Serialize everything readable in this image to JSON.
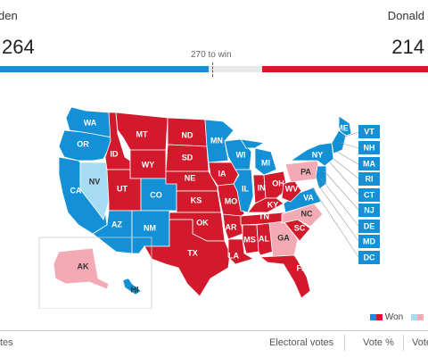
{
  "header": {
    "left_candidate": "den",
    "right_candidate": "Donald",
    "left_votes": "264",
    "right_votes": "214",
    "win_label": "270 to win"
  },
  "colors": {
    "dem_won": "#1490d6",
    "rep_won": "#d31a2c",
    "dem_leading": "#a6dcf2",
    "rep_leading": "#f4aab4",
    "neutral": "#e8e8e8"
  },
  "map": {
    "states": {
      "WA": "WA",
      "OR": "OR",
      "CA": "CA",
      "NV": "NV",
      "ID": "ID",
      "MT": "MT",
      "WY": "WY",
      "UT": "UT",
      "AZ": "AZ",
      "CO": "CO",
      "NM": "NM",
      "ND": "ND",
      "SD": "SD",
      "NE": "NE",
      "KS": "KS",
      "OK": "OK",
      "TX": "TX",
      "MN": "MN",
      "IA": "IA",
      "MO": "MO",
      "AR": "AR",
      "LA": "LA",
      "WI": "WI",
      "IL": "IL",
      "MI": "MI",
      "IN": "IN",
      "OH": "OH",
      "KY": "KY",
      "TN": "TN",
      "MS": "MS",
      "AL": "AL",
      "GA": "GA",
      "FL": "FL",
      "SC": "SC",
      "NC": "NC",
      "VA": "VA",
      "WV": "WV",
      "PA": "PA",
      "NY": "NY",
      "ME": "ME",
      "AK": "AK",
      "HI": "HI"
    },
    "boxes": [
      "VT",
      "NH",
      "MA",
      "RI",
      "CT",
      "NJ",
      "DE",
      "MD",
      "DC"
    ]
  },
  "legend": {
    "won_label": "Won"
  },
  "table": {
    "col_states": "tes",
    "col_electoral": "Electoral votes",
    "col_vote_pct": "Vote %",
    "col_vote": "Vote"
  }
}
